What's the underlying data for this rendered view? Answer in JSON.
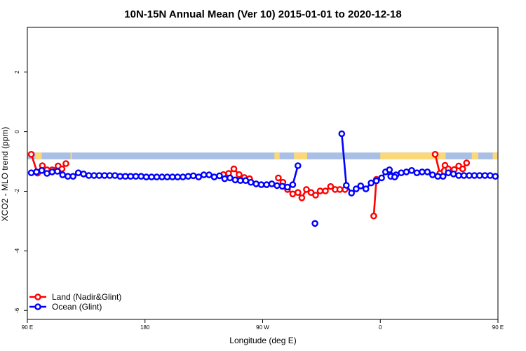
{
  "chart_data": {
    "type": "line",
    "title": "10N-15N Annual Mean (Ver 10)   2015-01-01 to 2020-12-18",
    "xlabel": "Longitude (deg E)",
    "ylabel": "XCO2 - MLO trend (ppm)",
    "xlim": [
      90,
      450
    ],
    "ylim": [
      -6.3,
      3.5
    ],
    "x_ticks": [
      {
        "value": 90,
        "label": "90 E"
      },
      {
        "value": 180,
        "label": "180"
      },
      {
        "value": 270,
        "label": "90 W"
      },
      {
        "value": 360,
        "label": "0"
      },
      {
        "value": 450,
        "label": "90 E"
      },
      {
        "value": 540,
        "label": "180"
      }
    ],
    "y_ticks": [
      {
        "value": 2,
        "label": "2"
      },
      {
        "value": 0,
        "label": "0"
      },
      {
        "value": -2,
        "label": "-2"
      },
      {
        "value": -4,
        "label": "-4"
      },
      {
        "value": -6,
        "label": "-6"
      }
    ],
    "grid": false,
    "legend_position": "bottom-left",
    "land_mask": {
      "y_top": -0.7,
      "y_bottom": -0.93,
      "ocean_color": "#a9bfe6",
      "land_color": "#fbd97a",
      "land_segments": [
        [
          96,
          101
        ],
        [
          123,
          124
        ],
        [
          279,
          283
        ],
        [
          294,
          304
        ],
        [
          360,
          410
        ],
        [
          430,
          435
        ],
        [
          446,
          451
        ],
        [
          477,
          479
        ]
      ]
    },
    "series": [
      {
        "name": "Land (Nadir&Glint)",
        "color": "#ff0000",
        "segments": [
          [
            [
              93.0,
              -0.76
            ],
            [
              97.8,
              -1.39
            ],
            [
              101.5,
              -1.14
            ],
            [
              105.0,
              -1.28
            ],
            [
              109.0,
              -1.28
            ],
            [
              113.5,
              -1.15
            ],
            [
              116.5,
              -1.25
            ],
            [
              119.5,
              -1.07
            ]
          ],
          [
            [
              240.0,
              -1.44
            ],
            [
              244.0,
              -1.4
            ],
            [
              248.0,
              -1.25
            ],
            [
              252.0,
              -1.44
            ],
            [
              256.0,
              -1.54
            ],
            [
              260.0,
              -1.58
            ]
          ],
          [
            [
              282.0,
              -1.55
            ],
            [
              285.5,
              -1.7
            ],
            [
              289.0,
              -1.94
            ],
            [
              293.0,
              -2.09
            ],
            [
              297.0,
              -2.04
            ],
            [
              300.0,
              -2.22
            ],
            [
              303.5,
              -1.94
            ],
            [
              307.0,
              -2.04
            ],
            [
              310.5,
              -2.13
            ],
            [
              314.0,
              -1.99
            ],
            [
              318.0,
              -1.99
            ],
            [
              322.0,
              -1.84
            ],
            [
              325.5,
              -1.94
            ],
            [
              329.0,
              -1.94
            ],
            [
              333.0,
              -1.94
            ]
          ],
          [
            [
              355.0,
              -2.83
            ],
            [
              357.0,
              -1.6
            ]
          ],
          [
            [
              402.0,
              -0.76
            ],
            [
              405.5,
              -1.4
            ],
            [
              409.5,
              -1.13
            ],
            [
              412.0,
              -1.25
            ],
            [
              416.5,
              -1.27
            ],
            [
              420.0,
              -1.15
            ],
            [
              423.0,
              -1.25
            ],
            [
              426.0,
              -1.05
            ]
          ]
        ]
      },
      {
        "name": "Ocean (Glint)",
        "color": "#0000ff",
        "segments": [
          [
            [
              93.0,
              -1.38
            ],
            [
              97.0,
              -1.35
            ],
            [
              101.0,
              -1.3
            ],
            [
              105.0,
              -1.4
            ],
            [
              109.0,
              -1.35
            ],
            [
              113.0,
              -1.33
            ],
            [
              117.0,
              -1.45
            ],
            [
              121.0,
              -1.5
            ],
            [
              125.0,
              -1.5
            ],
            [
              129.0,
              -1.38
            ],
            [
              133.0,
              -1.42
            ],
            [
              137.0,
              -1.47
            ],
            [
              141.0,
              -1.47
            ],
            [
              145.0,
              -1.47
            ],
            [
              149.0,
              -1.47
            ],
            [
              153.0,
              -1.47
            ],
            [
              157.0,
              -1.47
            ],
            [
              161.0,
              -1.5
            ],
            [
              165.0,
              -1.5
            ],
            [
              169.0,
              -1.5
            ],
            [
              173.0,
              -1.5
            ],
            [
              177.0,
              -1.5
            ],
            [
              181.0,
              -1.52
            ],
            [
              185.0,
              -1.52
            ],
            [
              189.0,
              -1.52
            ],
            [
              193.0,
              -1.52
            ],
            [
              197.0,
              -1.52
            ],
            [
              201.0,
              -1.52
            ],
            [
              205.0,
              -1.52
            ],
            [
              209.0,
              -1.52
            ],
            [
              213.0,
              -1.5
            ],
            [
              217.0,
              -1.48
            ],
            [
              221.0,
              -1.52
            ],
            [
              225.0,
              -1.45
            ],
            [
              229.0,
              -1.45
            ],
            [
              233.0,
              -1.52
            ],
            [
              237.0,
              -1.48
            ],
            [
              241.0,
              -1.58
            ],
            [
              245.0,
              -1.55
            ],
            [
              249.0,
              -1.62
            ],
            [
              253.0,
              -1.64
            ],
            [
              257.0,
              -1.64
            ],
            [
              261.0,
              -1.7
            ],
            [
              265.0,
              -1.75
            ],
            [
              269.0,
              -1.78
            ],
            [
              273.0,
              -1.78
            ],
            [
              277.0,
              -1.75
            ],
            [
              281.0,
              -1.81
            ],
            [
              285.0,
              -1.83
            ],
            [
              289.0,
              -1.86
            ],
            [
              293.0,
              -1.78
            ],
            [
              297.0,
              -1.14
            ]
          ],
          [
            [
              330.5,
              -0.07
            ],
            [
              334.0,
              -1.8
            ],
            [
              338.0,
              -2.06
            ],
            [
              341.5,
              -1.92
            ],
            [
              345.0,
              -1.82
            ],
            [
              349.0,
              -1.92
            ],
            [
              353.0,
              -1.72
            ],
            [
              357.0,
              -1.65
            ],
            [
              361.0,
              -1.55
            ],
            [
              364.0,
              -1.35
            ],
            [
              368.0,
              -1.5
            ],
            [
              372.0,
              -1.45
            ],
            [
              376.0,
              -1.38
            ],
            [
              380.0,
              -1.35
            ],
            [
              384.0,
              -1.3
            ],
            [
              388.0,
              -1.38
            ],
            [
              392.0,
              -1.35
            ],
            [
              396.0,
              -1.35
            ],
            [
              400.0,
              -1.45
            ],
            [
              404.0,
              -1.5
            ],
            [
              408.0,
              -1.5
            ],
            [
              412.0,
              -1.38
            ],
            [
              416.0,
              -1.42
            ],
            [
              420.0,
              -1.47
            ],
            [
              424.0,
              -1.47
            ],
            [
              428.0,
              -1.47
            ],
            [
              432.0,
              -1.47
            ],
            [
              436.0,
              -1.47
            ],
            [
              440.0,
              -1.47
            ],
            [
              444.0,
              -1.47
            ],
            [
              448.0,
              -1.5
            ]
          ],
          [
            [
              367.0,
              -1.28
            ],
            [
              371.0,
              -1.52
            ]
          ],
          [
            [
              310.0,
              -3.08
            ]
          ]
        ]
      }
    ]
  }
}
